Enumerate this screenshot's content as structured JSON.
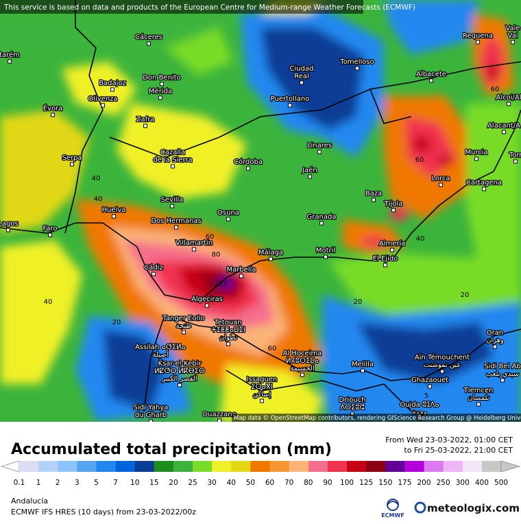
{
  "header": {
    "notice": "This service is based on data and products of the European Centre for Medium-range Weather Forecasts (ECMWF)"
  },
  "cities": [
    {
      "lines": [
        "Cáceres"
      ]
    },
    {
      "lines": [
        "Tomelloso"
      ]
    },
    {
      "lines": [
        "Requena"
      ]
    },
    {
      "lines": [
        "Ciudad",
        "Real"
      ]
    },
    {
      "lines": [
        "Badajoz"
      ]
    },
    {
      "lines": [
        "Don Benito"
      ]
    },
    {
      "lines": [
        "Mérida"
      ]
    },
    {
      "lines": [
        "Albacete"
      ]
    },
    {
      "lines": [
        "Olivenza"
      ]
    },
    {
      "lines": [
        "Puertollano"
      ]
    },
    {
      "lines": [
        "Évora"
      ]
    },
    {
      "lines": [
        "Zafra"
      ]
    },
    {
      "lines": [
        "Alcoi/Al"
      ]
    },
    {
      "lines": [
        "Alacant/A"
      ]
    },
    {
      "lines": [
        "Linares"
      ]
    },
    {
      "lines": [
        "Murcia"
      ]
    },
    {
      "lines": [
        "Serpa"
      ]
    },
    {
      "lines": [
        "Cazalla",
        "de la Sierra"
      ]
    },
    {
      "lines": [
        "Córdoba"
      ]
    },
    {
      "lines": [
        "Jaén"
      ]
    },
    {
      "lines": [
        "Lorca"
      ]
    },
    {
      "lines": [
        "Cartagena"
      ]
    },
    {
      "lines": [
        "Baza"
      ]
    },
    {
      "lines": [
        "Sevilla"
      ]
    },
    {
      "lines": [
        "Tíjola"
      ]
    },
    {
      "lines": [
        "Huelva"
      ]
    },
    {
      "lines": [
        "Osuna"
      ]
    },
    {
      "lines": [
        "Granada"
      ]
    },
    {
      "lines": [
        "Faro"
      ]
    },
    {
      "lines": [
        "Dos Hermanas"
      ]
    },
    {
      "lines": [
        "Villamartín"
      ]
    },
    {
      "lines": [
        "Almería"
      ]
    },
    {
      "lines": [
        "Motril"
      ]
    },
    {
      "lines": [
        "Málaga"
      ]
    },
    {
      "lines": [
        "El Ejido"
      ]
    },
    {
      "lines": [
        "Cádiz"
      ]
    },
    {
      "lines": [
        "Marbella"
      ]
    },
    {
      "lines": [
        "Algeciras"
      ]
    },
    {
      "lines": [
        "Tanger EoIIo",
        "طنجة"
      ]
    },
    {
      "lines": [
        "Tetouan",
        "ⵜⵉⵟⵟⴰⵡⵉⵏ",
        "تطوان"
      ]
    },
    {
      "lines": [
        "Assilah ⴰⵚⵉⵍⴰ",
        "أصيلة"
      ]
    },
    {
      "lines": [
        "Al Hoceima",
        "ⵍⵃⵓⵙⵉⵎⴰ",
        "الحسيمة"
      ]
    },
    {
      "lines": [
        "Ksar-el-Kebir",
        "ⵍⵇⵚⵔ ⵍⴽⴱⵉⵔ",
        "القصر الكبير"
      ]
    },
    {
      "lines": [
        "Issaguen",
        "ⵉⵙⴰⴳⵏ",
        "إساكن"
      ]
    },
    {
      "lines": [
        "Melilla"
      ]
    },
    {
      "lines": [
        "Aïn Témouchent",
        "عين تموشنت"
      ]
    },
    {
      "lines": [
        "Oran",
        "وهران"
      ]
    },
    {
      "lines": [
        "Sidi Bel Ab",
        "سيدي بلعب"
      ]
    },
    {
      "lines": [
        "Ghazaouet"
      ]
    },
    {
      "lines": [
        "Tlemcen",
        "تلمسان"
      ]
    },
    {
      "lines": [
        "Oujda ⵓⵊⴷⴰ",
        "وجدة"
      ]
    },
    {
      "lines": [
        "Driouch",
        "ⴷⵔⵉⵓⵛ"
      ]
    },
    {
      "lines": [
        "Sidi Yahya",
        "du Gharb"
      ]
    },
    {
      "lines": [
        "Ouazzane"
      ]
    },
    {
      "lines": [
        "Lagos"
      ]
    },
    {
      "lines": [
        "tarém"
      ]
    },
    {
      "lines": [
        "Vale",
        "Val"
      ]
    },
    {
      "lines": [
        "Torr"
      ]
    }
  ],
  "contour_labels": [
    "40",
    "60",
    "80",
    "157",
    "40",
    "20",
    "60",
    "40",
    "60",
    "60",
    "20",
    "20",
    "5",
    "40"
  ],
  "attribution": "Map data © OpenStreetMap contributors, rendering GIScience Research Group @ Heidelberg University",
  "footer": {
    "title": "Accumulated total precipitation (mm)",
    "period_from": "From Wed 23-03-2022, 01:00 CET",
    "period_to": "to Fri 25-03-2022, 21:00 CET",
    "region": "Andalucía",
    "model": "ECMWF IFS HRES (10 days) from 23-03-2022/00z",
    "logo_ecmwf": "ECMWF",
    "brand": "meteologix.com"
  },
  "legend": {
    "values": [
      0.1,
      1,
      2,
      3,
      5,
      7,
      10,
      15,
      20,
      25,
      30,
      40,
      50,
      60,
      70,
      80,
      90,
      100,
      125,
      150,
      175,
      200,
      250,
      300,
      400,
      500
    ],
    "colors": [
      "#ffffff",
      "#dcdcf4",
      "#b4d2f8",
      "#8cc3f8",
      "#55a5f0",
      "#2288f0",
      "#0064dc",
      "#0a3c96",
      "#1e8c1e",
      "#3cb43c",
      "#78dc28",
      "#f0f028",
      "#e1d714",
      "#f07800",
      "#f59632",
      "#fab478",
      "#f56e8c",
      "#f03250",
      "#c80014",
      "#8c0014",
      "#640096",
      "#b400dc",
      "#dc78f0",
      "#f0b4f8",
      "#f4e4f8",
      "#c8c8c8"
    ]
  }
}
